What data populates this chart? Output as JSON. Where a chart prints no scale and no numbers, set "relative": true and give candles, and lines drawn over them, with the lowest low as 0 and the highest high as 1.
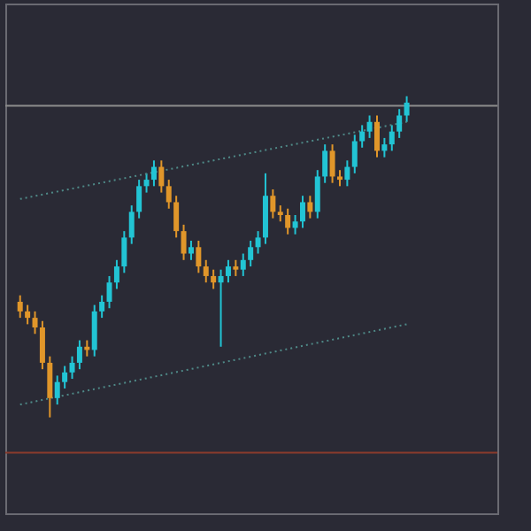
{
  "chart_data": {
    "type": "candlestick",
    "relative": true,
    "grid": false,
    "categories": [
      null,
      null,
      null,
      null,
      null,
      null,
      null,
      null,
      null,
      null,
      null,
      null,
      null,
      null,
      null,
      null,
      null,
      null,
      null,
      null,
      null,
      null,
      null,
      null,
      null,
      null,
      null,
      null,
      null,
      null,
      null,
      null,
      null,
      null,
      null,
      null,
      null,
      null,
      null,
      null,
      null,
      null,
      null,
      null,
      null,
      null,
      null,
      null,
      null,
      null,
      null,
      null,
      null
    ],
    "ohlc": [
      [
        0.36,
        0.38,
        0.31,
        0.33
      ],
      [
        0.33,
        0.35,
        0.29,
        0.31
      ],
      [
        0.31,
        0.33,
        0.26,
        0.28
      ],
      [
        0.28,
        0.3,
        0.15,
        0.17
      ],
      [
        0.17,
        0.19,
        0,
        0.06
      ],
      [
        0.06,
        0.13,
        0.04,
        0.11
      ],
      [
        0.11,
        0.16,
        0.09,
        0.14
      ],
      [
        0.14,
        0.19,
        0.12,
        0.17
      ],
      [
        0.17,
        0.24,
        0.15,
        0.22
      ],
      [
        0.22,
        0.24,
        0.19,
        0.21
      ],
      [
        0.21,
        0.35,
        0.19,
        0.33
      ],
      [
        0.33,
        0.38,
        0.31,
        0.36
      ],
      [
        0.36,
        0.44,
        0.34,
        0.42
      ],
      [
        0.42,
        0.49,
        0.4,
        0.47
      ],
      [
        0.47,
        0.58,
        0.45,
        0.56
      ],
      [
        0.56,
        0.66,
        0.54,
        0.64
      ],
      [
        0.64,
        0.74,
        0.62,
        0.72
      ],
      [
        0.72,
        0.76,
        0.7,
        0.74
      ],
      [
        0.74,
        0.8,
        0.72,
        0.78
      ],
      [
        0.78,
        0.8,
        0.7,
        0.72
      ],
      [
        0.72,
        0.74,
        0.65,
        0.67
      ],
      [
        0.67,
        0.69,
        0.56,
        0.58
      ],
      [
        0.58,
        0.6,
        0.49,
        0.51
      ],
      [
        0.51,
        0.55,
        0.49,
        0.53
      ],
      [
        0.53,
        0.55,
        0.45,
        0.47
      ],
      [
        0.47,
        0.49,
        0.42,
        0.44
      ],
      [
        0.44,
        0.46,
        0.4,
        0.42
      ],
      [
        0.42,
        0.46,
        0.22,
        0.44
      ],
      [
        0.44,
        0.49,
        0.42,
        0.47
      ],
      [
        0.47,
        0.49,
        0.44,
        0.46
      ],
      [
        0.46,
        0.51,
        0.44,
        0.49
      ],
      [
        0.49,
        0.55,
        0.47,
        0.53
      ],
      [
        0.53,
        0.58,
        0.51,
        0.56
      ],
      [
        0.56,
        0.76,
        0.54,
        0.69
      ],
      [
        0.69,
        0.71,
        0.62,
        0.64
      ],
      [
        0.64,
        0.66,
        0.61,
        0.63
      ],
      [
        0.63,
        0.65,
        0.57,
        0.59
      ],
      [
        0.59,
        0.63,
        0.57,
        0.61
      ],
      [
        0.61,
        0.69,
        0.59,
        0.67
      ],
      [
        0.67,
        0.69,
        0.62,
        0.64
      ],
      [
        0.64,
        0.77,
        0.62,
        0.75
      ],
      [
        0.75,
        0.85,
        0.73,
        0.83
      ],
      [
        0.83,
        0.85,
        0.73,
        0.75
      ],
      [
        0.75,
        0.77,
        0.72,
        0.74
      ],
      [
        0.74,
        0.8,
        0.72,
        0.78
      ],
      [
        0.78,
        0.88,
        0.76,
        0.86
      ],
      [
        0.86,
        0.91,
        0.84,
        0.89
      ],
      [
        0.89,
        0.94,
        0.87,
        0.92
      ],
      [
        0.92,
        0.94,
        0.81,
        0.83
      ],
      [
        0.83,
        0.87,
        0.81,
        0.85
      ],
      [
        0.85,
        0.91,
        0.83,
        0.89
      ],
      [
        0.89,
        0.96,
        0.87,
        0.94
      ],
      [
        0.94,
        1,
        0.92,
        0.98
      ]
    ],
    "colors": [
      "#e0962a",
      "#e0962a",
      "#e0962a",
      "#e0962a",
      "#e0962a",
      "#22c4d4",
      "#22c4d4",
      "#22c4d4",
      "#22c4d4",
      "#e0962a",
      "#22c4d4",
      "#22c4d4",
      "#22c4d4",
      "#22c4d4",
      "#22c4d4",
      "#22c4d4",
      "#22c4d4",
      "#22c4d4",
      "#22c4d4",
      "#e0962a",
      "#e0962a",
      "#e0962a",
      "#e0962a",
      "#22c4d4",
      "#e0962a",
      "#e0962a",
      "#e0962a",
      "#22c4d4",
      "#22c4d4",
      "#e0962a",
      "#22c4d4",
      "#22c4d4",
      "#22c4d4",
      "#22c4d4",
      "#e0962a",
      "#e0962a",
      "#e0962a",
      "#22c4d4",
      "#22c4d4",
      "#e0962a",
      "#22c4d4",
      "#22c4d4",
      "#e0962a",
      "#e0962a",
      "#22c4d4",
      "#22c4d4",
      "#22c4d4",
      "#22c4d4",
      "#e0962a",
      "#22c4d4",
      "#22c4d4",
      "#22c4d4",
      "#22c4d4"
    ],
    "series": [
      {
        "type": "line",
        "color": "#4f8a88",
        "line_style": "dotted",
        "values": [
          0.68,
          null,
          null,
          null,
          null,
          null,
          null,
          null,
          null,
          null,
          null,
          null,
          null,
          null,
          null,
          null,
          null,
          null,
          null,
          null,
          null,
          null,
          null,
          null,
          null,
          null,
          null,
          null,
          null,
          null,
          null,
          null,
          null,
          null,
          null,
          null,
          null,
          null,
          null,
          null,
          null,
          null,
          null,
          null,
          null,
          null,
          null,
          null,
          null,
          null,
          null,
          null,
          0.92
        ]
      },
      {
        "type": "line",
        "color": "#4f8a88",
        "line_style": "dotted",
        "values": [
          0.04,
          null,
          null,
          null,
          null,
          null,
          null,
          null,
          null,
          null,
          null,
          null,
          null,
          null,
          null,
          null,
          null,
          null,
          null,
          null,
          null,
          null,
          null,
          null,
          null,
          null,
          null,
          null,
          null,
          null,
          null,
          null,
          null,
          null,
          null,
          null,
          null,
          null,
          null,
          null,
          null,
          null,
          null,
          null,
          null,
          null,
          null,
          null,
          null,
          null,
          null,
          null,
          0.29
        ]
      }
    ],
    "ref_lines": [
      {
        "axis": "y",
        "value": 0.97,
        "color": "#8c8c8c"
      },
      {
        "axis": "y",
        "value": -0.11,
        "color": "#8a3b2c"
      }
    ]
  }
}
